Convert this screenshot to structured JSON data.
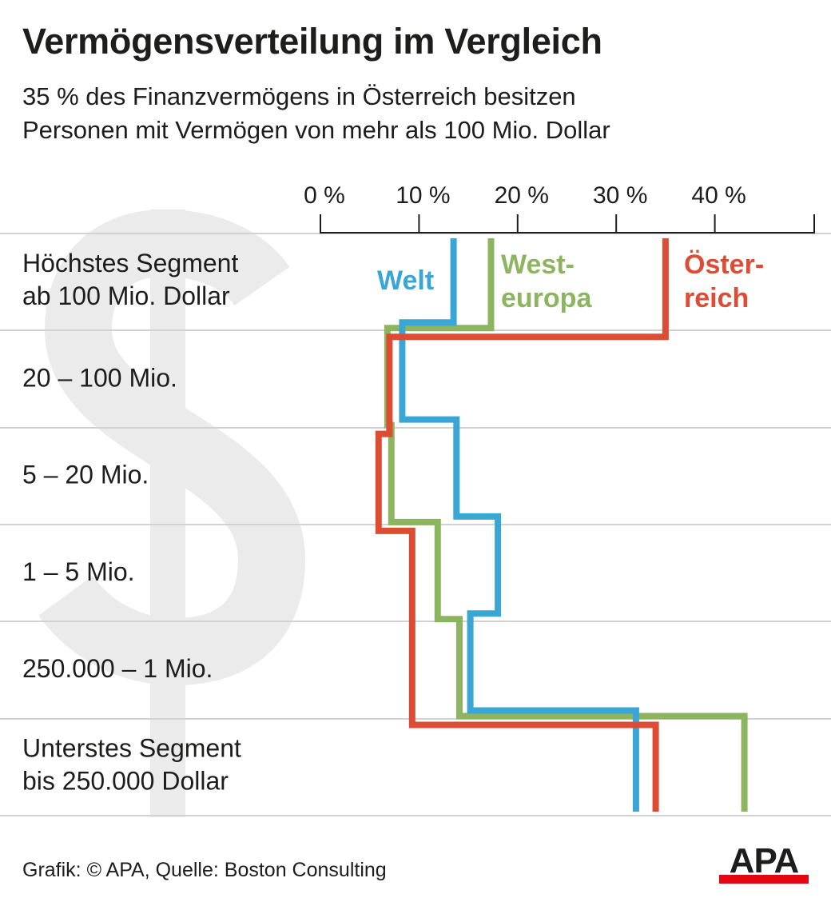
{
  "header": {
    "title": "Vermögensverteilung im Vergleich",
    "subtitle_line1": "35 % des Finanzvermögens in Österreich besitzen",
    "subtitle_line2": "Personen mit Vermögen von mehr als 100 Mio. Dollar"
  },
  "footer": {
    "source": "Grafik: © APA, Quelle: Boston Consulting",
    "logo": "APA"
  },
  "colors": {
    "welt": "#3aa6d6",
    "westeuropa": "#8db55f",
    "oesterreich": "#dd4c35",
    "logo_bar": "#e30613"
  },
  "chart_data": {
    "type": "line",
    "orientation": "horizontal-step",
    "x_unit": "%",
    "xlim": [
      0,
      50
    ],
    "x_ticks": [
      0,
      10,
      20,
      30,
      40
    ],
    "x_tick_labels": [
      "0 %",
      "10 %",
      "20 %",
      "30 %",
      "40 %"
    ],
    "background_icon": "dollar-sign-icon",
    "categories": [
      {
        "line1": "Höchstes Segment",
        "line2": "ab 100 Mio. Dollar"
      },
      {
        "line1": "20 – 100 Mio.",
        "line2": ""
      },
      {
        "line1": "5 – 20 Mio.",
        "line2": ""
      },
      {
        "line1": "1 – 5 Mio.",
        "line2": ""
      },
      {
        "line1": "250.000 – 1 Mio.",
        "line2": ""
      },
      {
        "line1": "Unterstes Segment",
        "line2": "bis 250.000 Dollar"
      }
    ],
    "series": [
      {
        "key": "welt",
        "name_line1": "Welt",
        "name_line2": "",
        "values": [
          13.5,
          8.3,
          13.8,
          18.0,
          15.2,
          32.0
        ]
      },
      {
        "key": "westeuropa",
        "name_line1": "West-",
        "name_line2": "europa",
        "values": [
          17.3,
          6.8,
          7.2,
          11.9,
          14.1,
          43.0
        ]
      },
      {
        "key": "oesterreich",
        "name_line1": "Öster-",
        "name_line2": "reich",
        "values": [
          35.0,
          7.0,
          5.9,
          9.3,
          9.3,
          34.0
        ]
      }
    ]
  }
}
